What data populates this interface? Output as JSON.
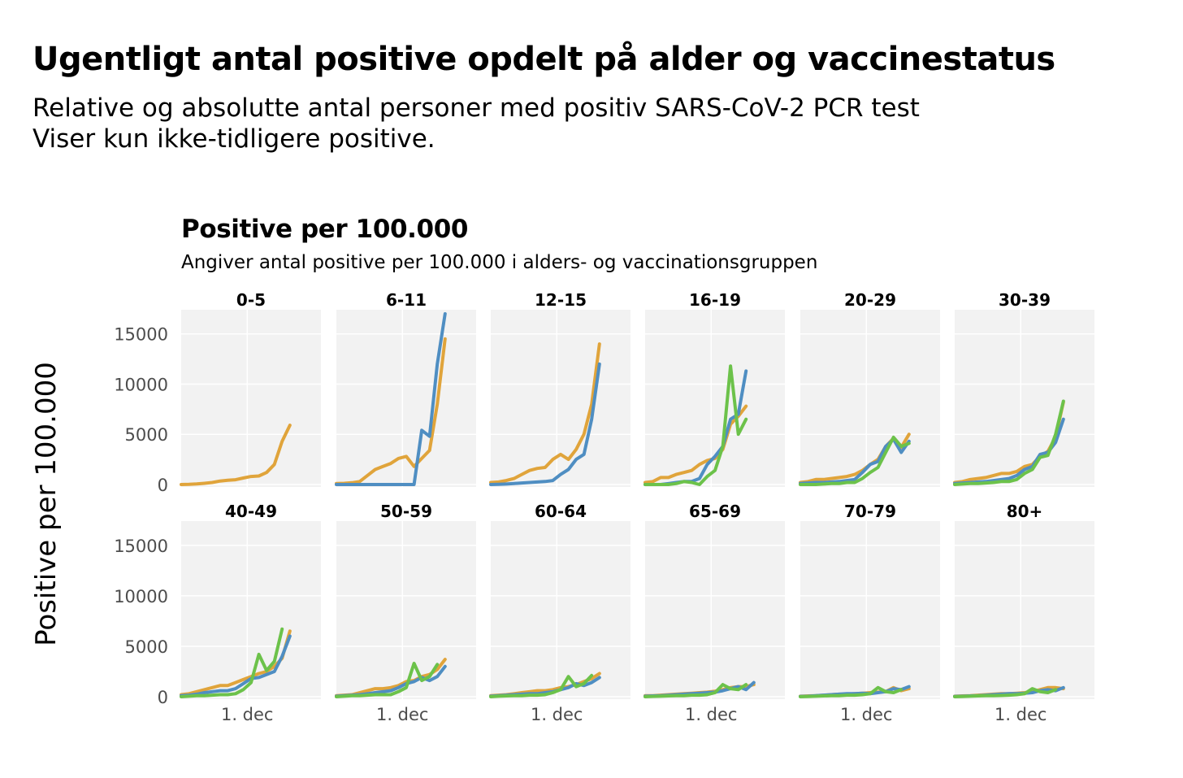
{
  "header": {
    "title": "Ugentligt antal positive opdelt på alder og vaccinestatus",
    "subtitle_lines": [
      "Relative og absolutte antal personer med positiv SARS-CoV-2 PCR test",
      "Viser kun ikke-tidligere positive."
    ]
  },
  "chart_data": {
    "type": "line",
    "title": "Positive per 100.000",
    "subtitle": "Angiver antal positive per 100.000 i alders- og vaccinationsgruppen",
    "ylabel": "Positive per 100.000",
    "xlabel": "",
    "ylim": [
      0,
      17000
    ],
    "yticks": [
      0,
      5000,
      10000,
      15000
    ],
    "x": [
      1,
      2,
      3,
      4,
      5,
      6,
      7,
      8,
      9,
      10,
      11,
      12,
      13,
      14,
      15,
      16,
      17,
      18,
      19
    ],
    "xlim": [
      1,
      19
    ],
    "xtick_labels": [
      {
        "x": 9.5,
        "label": "1. dec"
      }
    ],
    "grid": true,
    "legend": "none",
    "colors": {
      "orange": "#e0a43b",
      "blue": "#4f8ec2",
      "green": "#6cc24a"
    },
    "panels": [
      {
        "label": "0-5",
        "series": [
          {
            "color": "orange",
            "values": [
              0,
              20,
              60,
              120,
              200,
              350,
              420,
              480,
              650,
              800,
              850,
              1200,
              2000,
              4300,
              5900
            ]
          }
        ]
      },
      {
        "label": "6-11",
        "series": [
          {
            "color": "orange",
            "values": [
              100,
              120,
              180,
              300,
              900,
              1500,
              1800,
              2100,
              2600,
              2800,
              1800,
              2600,
              3400,
              8000,
              14500
            ]
          },
          {
            "color": "blue",
            "values": [
              0,
              0,
              0,
              0,
              0,
              0,
              0,
              0,
              0,
              0,
              0,
              5400,
              4800,
              12000,
              17000
            ]
          }
        ]
      },
      {
        "label": "12-15",
        "series": [
          {
            "color": "orange",
            "values": [
              200,
              250,
              400,
              600,
              1000,
              1400,
              1600,
              1700,
              2500,
              3000,
              2500,
              3500,
              5000,
              8000,
              14000
            ]
          },
          {
            "color": "blue",
            "values": [
              0,
              20,
              50,
              100,
              150,
              200,
              250,
              300,
              400,
              1000,
              1500,
              2500,
              3000,
              6500,
              12000
            ]
          }
        ]
      },
      {
        "label": "16-19",
        "series": [
          {
            "color": "orange",
            "values": [
              200,
              300,
              700,
              700,
              1000,
              1200,
              1400,
              2000,
              2400,
              2600,
              3500,
              6000,
              6800,
              7800
            ]
          },
          {
            "color": "blue",
            "values": [
              0,
              0,
              0,
              100,
              200,
              300,
              300,
              600,
              2000,
              2800,
              3800,
              6500,
              7000,
              11300
            ]
          },
          {
            "color": "green",
            "values": [
              0,
              0,
              0,
              0,
              100,
              300,
              200,
              0,
              800,
              1400,
              3800,
              11800,
              5000,
              6500
            ]
          }
        ]
      },
      {
        "label": "20-29",
        "series": [
          {
            "color": "orange",
            "values": [
              200,
              300,
              500,
              500,
              600,
              700,
              800,
              1000,
              1400,
              2000,
              2500,
              3800,
              4600,
              3700,
              5000
            ]
          },
          {
            "color": "blue",
            "values": [
              100,
              150,
              200,
              200,
              250,
              300,
              400,
              500,
              1200,
              2000,
              2300,
              3800,
              4500,
              3200,
              4300
            ]
          },
          {
            "color": "green",
            "values": [
              0,
              0,
              0,
              50,
              100,
              100,
              200,
              200,
              600,
              1200,
              1700,
              3200,
              4700,
              3800,
              4100
            ]
          }
        ]
      },
      {
        "label": "30-39",
        "series": [
          {
            "color": "orange",
            "values": [
              200,
              300,
              500,
              600,
              700,
              900,
              1100,
              1100,
              1300,
              1800,
              2000,
              2800,
              3300,
              4700,
              8200
            ]
          },
          {
            "color": "blue",
            "values": [
              100,
              150,
              200,
              250,
              300,
              400,
              500,
              600,
              900,
              1500,
              1800,
              3000,
              3200,
              4200,
              6500
            ]
          },
          {
            "color": "green",
            "values": [
              0,
              50,
              100,
              100,
              150,
              200,
              300,
              300,
              500,
              1100,
              1500,
              2700,
              2900,
              5000,
              8300
            ]
          }
        ]
      },
      {
        "label": "40-49",
        "series": [
          {
            "color": "orange",
            "values": [
              200,
              300,
              500,
              700,
              900,
              1100,
              1100,
              1400,
              1700,
              2000,
              2300,
              2500,
              3000,
              3800,
              6500
            ]
          },
          {
            "color": "blue",
            "values": [
              100,
              150,
              250,
              400,
              500,
              600,
              600,
              800,
              1300,
              1800,
              1900,
              2200,
              2500,
              4000,
              6000
            ]
          },
          {
            "color": "green",
            "values": [
              0,
              50,
              100,
              100,
              150,
              200,
              200,
              300,
              700,
              1400,
              4200,
              2600,
              3500,
              6700
            ]
          }
        ]
      },
      {
        "label": "50-59",
        "series": [
          {
            "color": "orange",
            "values": [
              100,
              150,
              200,
              400,
              600,
              800,
              800,
              900,
              1100,
              1500,
              1600,
              2000,
              2200,
              2700,
              3700
            ]
          },
          {
            "color": "blue",
            "values": [
              50,
              100,
              150,
              200,
              300,
              400,
              500,
              600,
              900,
              1300,
              1500,
              1900,
              1600,
              2000,
              3000
            ]
          },
          {
            "color": "green",
            "values": [
              0,
              50,
              100,
              100,
              150,
              200,
              200,
              200,
              500,
              900,
              3300,
              1600,
              2000,
              3200
            ]
          }
        ]
      },
      {
        "label": "60-64",
        "series": [
          {
            "color": "orange",
            "values": [
              100,
              150,
              200,
              300,
              400,
              500,
              600,
              600,
              700,
              900,
              1000,
              1200,
              1500,
              1800,
              2300
            ]
          },
          {
            "color": "blue",
            "values": [
              50,
              100,
              150,
              200,
              250,
              300,
              300,
              400,
              500,
              700,
              900,
              1300,
              1100,
              1400,
              1900
            ]
          },
          {
            "color": "green",
            "values": [
              0,
              50,
              80,
              100,
              100,
              150,
              150,
              200,
              400,
              700,
              2000,
              1000,
              1300,
              2100
            ]
          }
        ]
      },
      {
        "label": "65-69",
        "series": [
          {
            "color": "orange",
            "values": [
              100,
              100,
              150,
              200,
              250,
              300,
              350,
              400,
              450,
              550,
              700,
              900,
              1000,
              1000,
              1200
            ]
          },
          {
            "color": "blue",
            "values": [
              50,
              80,
              100,
              150,
              200,
              250,
              300,
              350,
              400,
              450,
              600,
              800,
              1000,
              700,
              1400
            ]
          },
          {
            "color": "green",
            "values": [
              0,
              30,
              50,
              80,
              100,
              100,
              150,
              150,
              200,
              400,
              1200,
              800,
              700,
              1200
            ]
          }
        ]
      },
      {
        "label": "70-79",
        "series": [
          {
            "color": "orange",
            "values": [
              50,
              80,
              100,
              150,
              200,
              250,
              250,
              300,
              350,
              400,
              450,
              500,
              900,
              600,
              800
            ]
          },
          {
            "color": "blue",
            "values": [
              30,
              50,
              100,
              150,
              200,
              250,
              300,
              300,
              350,
              300,
              400,
              500,
              800,
              700,
              1000
            ]
          },
          {
            "color": "green",
            "values": [
              0,
              20,
              50,
              80,
              100,
              100,
              150,
              150,
              200,
              300,
              900,
              500,
              400,
              700
            ]
          }
        ]
      },
      {
        "label": "80+",
        "series": [
          {
            "color": "orange",
            "values": [
              50,
              80,
              100,
              150,
              200,
              250,
              300,
              300,
              350,
              400,
              500,
              700,
              900,
              900,
              800
            ]
          },
          {
            "color": "blue",
            "values": [
              30,
              50,
              80,
              100,
              150,
              200,
              250,
              300,
              300,
              350,
              400,
              600,
              700,
              600,
              900
            ]
          },
          {
            "color": "green",
            "values": [
              0,
              20,
              50,
              80,
              100,
              100,
              120,
              150,
              200,
              300,
              800,
              500,
              400,
              700
            ]
          }
        ]
      }
    ]
  }
}
